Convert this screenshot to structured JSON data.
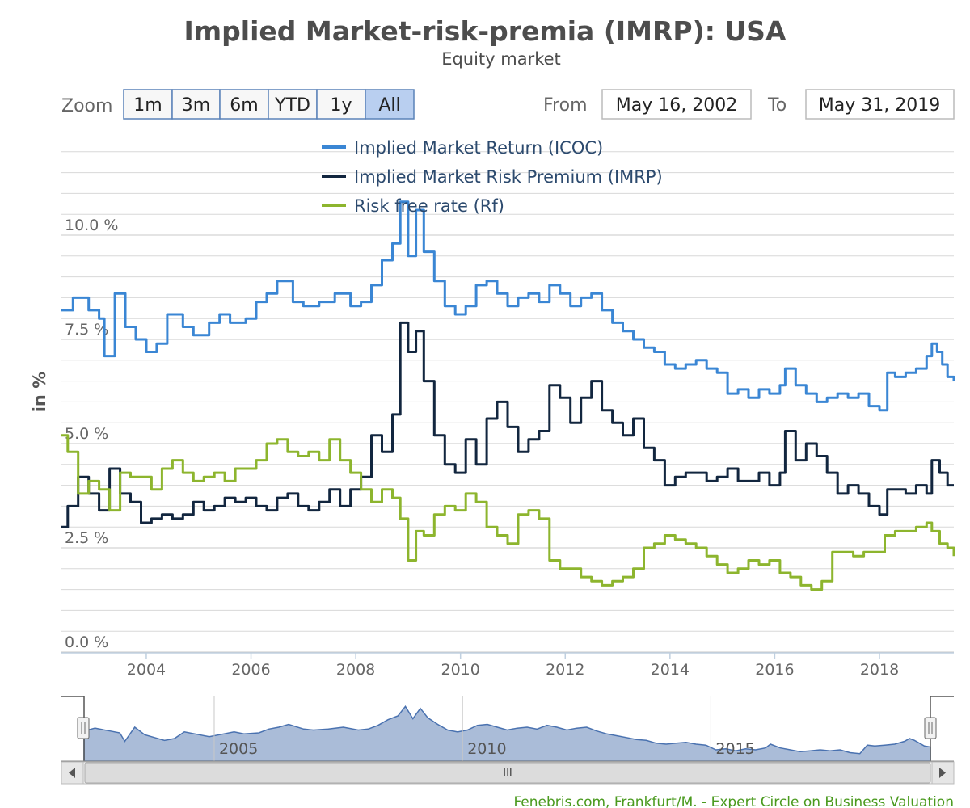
{
  "chart_data": {
    "type": "line",
    "title": "Implied Market-risk-premia (IMRP): USA",
    "subtitle": "Equity market",
    "ylabel": "in %",
    "ylim": [
      0,
      11.5
    ],
    "xlim": [
      2002.38,
      2019.42
    ],
    "y_ticks": [
      {
        "value": 0,
        "label": "0.0 %"
      },
      {
        "value": 2.5,
        "label": "2.5 %"
      },
      {
        "value": 5,
        "label": "5.0 %"
      },
      {
        "value": 7.5,
        "label": "7.5 %"
      },
      {
        "value": 10,
        "label": "10.0 %"
      }
    ],
    "x_ticks": [
      {
        "value": 2004,
        "label": "2004"
      },
      {
        "value": 2006,
        "label": "2006"
      },
      {
        "value": 2008,
        "label": "2008"
      },
      {
        "value": 2010,
        "label": "2010"
      },
      {
        "value": 2012,
        "label": "2012"
      },
      {
        "value": 2014,
        "label": "2014"
      },
      {
        "value": 2016,
        "label": "2016"
      },
      {
        "value": 2018,
        "label": "2018"
      }
    ],
    "grid": true,
    "legend_placement": "top-center",
    "series": [
      {
        "name": "Implied Market Return (ICOC)",
        "color": "#3a86d4",
        "points": [
          [
            2002.38,
            8.2
          ],
          [
            2002.6,
            8.5
          ],
          [
            2002.9,
            8.2
          ],
          [
            2003.1,
            8.0
          ],
          [
            2003.2,
            7.1
          ],
          [
            2003.4,
            8.6
          ],
          [
            2003.6,
            7.8
          ],
          [
            2003.8,
            7.5
          ],
          [
            2004.0,
            7.2
          ],
          [
            2004.2,
            7.4
          ],
          [
            2004.4,
            8.1
          ],
          [
            2004.7,
            7.8
          ],
          [
            2004.9,
            7.6
          ],
          [
            2005.2,
            7.9
          ],
          [
            2005.4,
            8.1
          ],
          [
            2005.6,
            7.9
          ],
          [
            2005.9,
            8.0
          ],
          [
            2006.1,
            8.4
          ],
          [
            2006.3,
            8.6
          ],
          [
            2006.5,
            8.9
          ],
          [
            2006.8,
            8.4
          ],
          [
            2007.0,
            8.3
          ],
          [
            2007.3,
            8.4
          ],
          [
            2007.6,
            8.6
          ],
          [
            2007.9,
            8.3
          ],
          [
            2008.1,
            8.4
          ],
          [
            2008.3,
            8.8
          ],
          [
            2008.5,
            9.4
          ],
          [
            2008.7,
            9.8
          ],
          [
            2008.85,
            10.8
          ],
          [
            2009.0,
            9.5
          ],
          [
            2009.15,
            10.6
          ],
          [
            2009.3,
            9.6
          ],
          [
            2009.5,
            8.9
          ],
          [
            2009.7,
            8.3
          ],
          [
            2009.9,
            8.1
          ],
          [
            2010.1,
            8.3
          ],
          [
            2010.3,
            8.8
          ],
          [
            2010.5,
            8.9
          ],
          [
            2010.7,
            8.6
          ],
          [
            2010.9,
            8.3
          ],
          [
            2011.1,
            8.5
          ],
          [
            2011.3,
            8.6
          ],
          [
            2011.5,
            8.4
          ],
          [
            2011.7,
            8.8
          ],
          [
            2011.9,
            8.6
          ],
          [
            2012.1,
            8.3
          ],
          [
            2012.3,
            8.5
          ],
          [
            2012.5,
            8.6
          ],
          [
            2012.7,
            8.2
          ],
          [
            2012.9,
            7.9
          ],
          [
            2013.1,
            7.7
          ],
          [
            2013.3,
            7.5
          ],
          [
            2013.5,
            7.3
          ],
          [
            2013.7,
            7.2
          ],
          [
            2013.9,
            6.9
          ],
          [
            2014.1,
            6.8
          ],
          [
            2014.3,
            6.9
          ],
          [
            2014.5,
            7.0
          ],
          [
            2014.7,
            6.8
          ],
          [
            2014.9,
            6.7
          ],
          [
            2015.1,
            6.2
          ],
          [
            2015.3,
            6.3
          ],
          [
            2015.5,
            6.1
          ],
          [
            2015.7,
            6.3
          ],
          [
            2015.9,
            6.2
          ],
          [
            2016.1,
            6.4
          ],
          [
            2016.2,
            6.8
          ],
          [
            2016.4,
            6.4
          ],
          [
            2016.6,
            6.2
          ],
          [
            2016.8,
            6.0
          ],
          [
            2017.0,
            6.1
          ],
          [
            2017.2,
            6.2
          ],
          [
            2017.4,
            6.1
          ],
          [
            2017.6,
            6.2
          ],
          [
            2017.8,
            5.9
          ],
          [
            2018.0,
            5.8
          ],
          [
            2018.15,
            6.7
          ],
          [
            2018.3,
            6.6
          ],
          [
            2018.5,
            6.7
          ],
          [
            2018.7,
            6.8
          ],
          [
            2018.9,
            7.1
          ],
          [
            2019.0,
            7.4
          ],
          [
            2019.1,
            7.2
          ],
          [
            2019.2,
            6.9
          ],
          [
            2019.3,
            6.6
          ],
          [
            2019.42,
            6.5
          ]
        ]
      },
      {
        "name": "Implied Market Risk Premium (IMRP)",
        "color": "#12263f",
        "points": [
          [
            2002.38,
            3.0
          ],
          [
            2002.5,
            3.5
          ],
          [
            2002.7,
            4.2
          ],
          [
            2002.9,
            3.8
          ],
          [
            2003.1,
            3.4
          ],
          [
            2003.3,
            4.4
          ],
          [
            2003.5,
            3.8
          ],
          [
            2003.7,
            3.6
          ],
          [
            2003.9,
            3.1
          ],
          [
            2004.1,
            3.2
          ],
          [
            2004.3,
            3.3
          ],
          [
            2004.5,
            3.2
          ],
          [
            2004.7,
            3.3
          ],
          [
            2004.9,
            3.6
          ],
          [
            2005.1,
            3.4
          ],
          [
            2005.3,
            3.5
          ],
          [
            2005.5,
            3.7
          ],
          [
            2005.7,
            3.6
          ],
          [
            2005.9,
            3.7
          ],
          [
            2006.1,
            3.5
          ],
          [
            2006.3,
            3.4
          ],
          [
            2006.5,
            3.7
          ],
          [
            2006.7,
            3.8
          ],
          [
            2006.9,
            3.5
          ],
          [
            2007.1,
            3.4
          ],
          [
            2007.3,
            3.6
          ],
          [
            2007.5,
            3.9
          ],
          [
            2007.7,
            3.5
          ],
          [
            2007.9,
            3.9
          ],
          [
            2008.1,
            4.2
          ],
          [
            2008.3,
            5.2
          ],
          [
            2008.5,
            4.8
          ],
          [
            2008.7,
            5.7
          ],
          [
            2008.85,
            7.9
          ],
          [
            2009.0,
            7.2
          ],
          [
            2009.15,
            7.7
          ],
          [
            2009.3,
            6.5
          ],
          [
            2009.5,
            5.2
          ],
          [
            2009.7,
            4.5
          ],
          [
            2009.9,
            4.3
          ],
          [
            2010.1,
            5.1
          ],
          [
            2010.3,
            4.5
          ],
          [
            2010.5,
            5.6
          ],
          [
            2010.7,
            6.0
          ],
          [
            2010.9,
            5.4
          ],
          [
            2011.1,
            4.8
          ],
          [
            2011.3,
            5.1
          ],
          [
            2011.5,
            5.3
          ],
          [
            2011.7,
            6.4
          ],
          [
            2011.9,
            6.1
          ],
          [
            2012.1,
            5.5
          ],
          [
            2012.3,
            6.1
          ],
          [
            2012.5,
            6.5
          ],
          [
            2012.7,
            5.8
          ],
          [
            2012.9,
            5.5
          ],
          [
            2013.1,
            5.2
          ],
          [
            2013.3,
            5.6
          ],
          [
            2013.5,
            4.9
          ],
          [
            2013.7,
            4.6
          ],
          [
            2013.9,
            4.0
          ],
          [
            2014.1,
            4.2
          ],
          [
            2014.3,
            4.3
          ],
          [
            2014.5,
            4.3
          ],
          [
            2014.7,
            4.1
          ],
          [
            2014.9,
            4.2
          ],
          [
            2015.1,
            4.4
          ],
          [
            2015.3,
            4.1
          ],
          [
            2015.5,
            4.1
          ],
          [
            2015.7,
            4.3
          ],
          [
            2015.9,
            4.0
          ],
          [
            2016.1,
            4.3
          ],
          [
            2016.2,
            5.3
          ],
          [
            2016.4,
            4.6
          ],
          [
            2016.6,
            5.0
          ],
          [
            2016.8,
            4.7
          ],
          [
            2017.0,
            4.3
          ],
          [
            2017.2,
            3.8
          ],
          [
            2017.4,
            4.0
          ],
          [
            2017.6,
            3.8
          ],
          [
            2017.8,
            3.5
          ],
          [
            2018.0,
            3.3
          ],
          [
            2018.15,
            3.9
          ],
          [
            2018.3,
            3.9
          ],
          [
            2018.5,
            3.8
          ],
          [
            2018.7,
            4.0
          ],
          [
            2018.9,
            3.8
          ],
          [
            2019.0,
            4.6
          ],
          [
            2019.15,
            4.3
          ],
          [
            2019.3,
            4.0
          ],
          [
            2019.42,
            4.0
          ]
        ]
      },
      {
        "name": "Risk free rate (Rf)",
        "color": "#8db52e",
        "points": [
          [
            2002.38,
            5.2
          ],
          [
            2002.5,
            4.8
          ],
          [
            2002.7,
            3.8
          ],
          [
            2002.9,
            4.1
          ],
          [
            2003.1,
            3.9
          ],
          [
            2003.3,
            3.4
          ],
          [
            2003.5,
            4.3
          ],
          [
            2003.7,
            4.2
          ],
          [
            2003.9,
            4.2
          ],
          [
            2004.1,
            3.9
          ],
          [
            2004.3,
            4.4
          ],
          [
            2004.5,
            4.6
          ],
          [
            2004.7,
            4.3
          ],
          [
            2004.9,
            4.1
          ],
          [
            2005.1,
            4.2
          ],
          [
            2005.3,
            4.3
          ],
          [
            2005.5,
            4.1
          ],
          [
            2005.7,
            4.4
          ],
          [
            2005.9,
            4.4
          ],
          [
            2006.1,
            4.6
          ],
          [
            2006.3,
            5.0
          ],
          [
            2006.5,
            5.1
          ],
          [
            2006.7,
            4.8
          ],
          [
            2006.9,
            4.7
          ],
          [
            2007.1,
            4.8
          ],
          [
            2007.3,
            4.6
          ],
          [
            2007.5,
            5.1
          ],
          [
            2007.7,
            4.6
          ],
          [
            2007.9,
            4.3
          ],
          [
            2008.1,
            3.9
          ],
          [
            2008.3,
            3.6
          ],
          [
            2008.5,
            3.9
          ],
          [
            2008.7,
            3.7
          ],
          [
            2008.85,
            3.2
          ],
          [
            2009.0,
            2.2
          ],
          [
            2009.15,
            2.9
          ],
          [
            2009.3,
            2.8
          ],
          [
            2009.5,
            3.3
          ],
          [
            2009.7,
            3.5
          ],
          [
            2009.9,
            3.4
          ],
          [
            2010.1,
            3.8
          ],
          [
            2010.3,
            3.6
          ],
          [
            2010.5,
            3.0
          ],
          [
            2010.7,
            2.8
          ],
          [
            2010.9,
            2.6
          ],
          [
            2011.1,
            3.3
          ],
          [
            2011.3,
            3.4
          ],
          [
            2011.5,
            3.2
          ],
          [
            2011.7,
            2.2
          ],
          [
            2011.9,
            2.0
          ],
          [
            2012.1,
            2.0
          ],
          [
            2012.3,
            1.8
          ],
          [
            2012.5,
            1.7
          ],
          [
            2012.7,
            1.6
          ],
          [
            2012.9,
            1.7
          ],
          [
            2013.1,
            1.8
          ],
          [
            2013.3,
            2.0
          ],
          [
            2013.5,
            2.5
          ],
          [
            2013.7,
            2.6
          ],
          [
            2013.9,
            2.8
          ],
          [
            2014.1,
            2.7
          ],
          [
            2014.3,
            2.6
          ],
          [
            2014.5,
            2.5
          ],
          [
            2014.7,
            2.3
          ],
          [
            2014.9,
            2.1
          ],
          [
            2015.1,
            1.9
          ],
          [
            2015.3,
            2.0
          ],
          [
            2015.5,
            2.2
          ],
          [
            2015.7,
            2.1
          ],
          [
            2015.9,
            2.2
          ],
          [
            2016.1,
            1.9
          ],
          [
            2016.3,
            1.8
          ],
          [
            2016.5,
            1.6
          ],
          [
            2016.7,
            1.5
          ],
          [
            2016.9,
            1.7
          ],
          [
            2017.1,
            2.4
          ],
          [
            2017.3,
            2.4
          ],
          [
            2017.5,
            2.3
          ],
          [
            2017.7,
            2.4
          ],
          [
            2017.9,
            2.4
          ],
          [
            2018.1,
            2.8
          ],
          [
            2018.3,
            2.9
          ],
          [
            2018.5,
            2.9
          ],
          [
            2018.7,
            3.0
          ],
          [
            2018.9,
            3.1
          ],
          [
            2019.0,
            2.9
          ],
          [
            2019.15,
            2.6
          ],
          [
            2019.3,
            2.5
          ],
          [
            2019.42,
            2.3
          ]
        ]
      }
    ]
  },
  "toolbar": {
    "zoom_label": "Zoom",
    "buttons": [
      "1m",
      "3m",
      "6m",
      "YTD",
      "1y",
      "All"
    ],
    "selected_button": "All",
    "from_label": "From",
    "from_date": "May 16, 2002",
    "to_label": "To",
    "to_date": "May 31, 2019"
  },
  "navigator": {
    "ticks": [
      {
        "value": 2005,
        "label": "2005"
      },
      {
        "value": 2010,
        "label": "2010"
      },
      {
        "value": 2015,
        "label": "2015"
      }
    ],
    "scrollbar_grip": "III"
  },
  "credits": "Fenebris.com, Frankfurt/M. - Expert Circle on Business Valuation"
}
